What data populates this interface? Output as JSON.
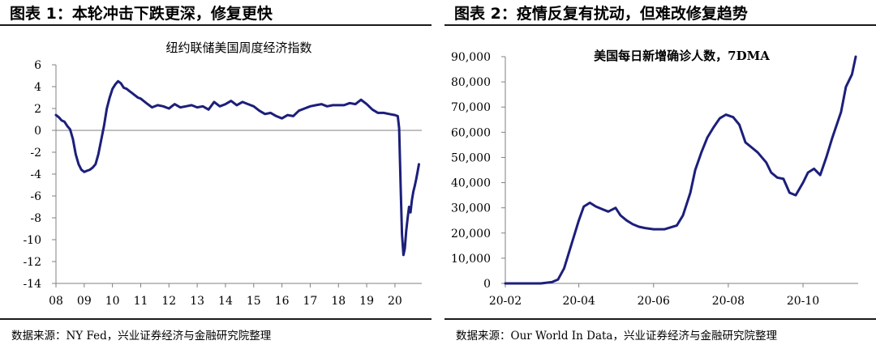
{
  "left_panel": {
    "heading": "图表 1：本轮冲击下跌更深，修复更快",
    "source": "数据来源：NY Fed，兴业证券经济与金融研究院整理"
  },
  "right_panel": {
    "heading": "图表 2：疫情反复有扰动，但难改修复趋势",
    "source": "数据来源：Our World In Data，兴业证券经济与金融研究院整理"
  },
  "chart_data": [
    {
      "type": "line",
      "title": "纽约联储美国周度经济指数",
      "xlabel": "",
      "ylabel": "",
      "ylim": [
        -14,
        6
      ],
      "yticks": [
        6,
        4,
        2,
        0,
        -2,
        -4,
        -6,
        -8,
        -10,
        -12,
        -14
      ],
      "xlim": [
        2008.0,
        2020.95
      ],
      "xticks": [
        2008,
        2009,
        2010,
        2011,
        2012,
        2013,
        2014,
        2015,
        2016,
        2017,
        2018,
        2019,
        2020
      ],
      "xtick_labels": [
        "08",
        "09",
        "10",
        "11",
        "12",
        "13",
        "14",
        "15",
        "16",
        "17",
        "18",
        "19",
        "20"
      ],
      "grid": false,
      "legend": "none",
      "line_color": "#1c1f7a",
      "zero_line": true,
      "series": [
        {
          "x": [
            2008.0,
            2008.1,
            2008.2,
            2008.3,
            2008.4,
            2008.5,
            2008.6,
            2008.7,
            2008.8,
            2008.9,
            2009.0,
            2009.1,
            2009.2,
            2009.3,
            2009.4,
            2009.5,
            2009.6,
            2009.7,
            2009.8,
            2009.9,
            2010.0,
            2010.1,
            2010.2,
            2010.3,
            2010.4,
            2010.5,
            2010.6,
            2010.7,
            2010.8,
            2010.9,
            2011.0,
            2011.2,
            2011.4,
            2011.6,
            2011.8,
            2012.0,
            2012.2,
            2012.4,
            2012.6,
            2012.8,
            2013.0,
            2013.2,
            2013.4,
            2013.6,
            2013.8,
            2014.0,
            2014.2,
            2014.4,
            2014.6,
            2014.8,
            2015.0,
            2015.2,
            2015.4,
            2015.6,
            2015.8,
            2016.0,
            2016.2,
            2016.4,
            2016.6,
            2016.8,
            2017.0,
            2017.2,
            2017.4,
            2017.6,
            2017.8,
            2018.0,
            2018.2,
            2018.4,
            2018.6,
            2018.8,
            2019.0,
            2019.2,
            2019.4,
            2019.6,
            2019.8,
            2020.0,
            2020.1,
            2020.15,
            2020.2,
            2020.25,
            2020.3,
            2020.35,
            2020.4,
            2020.45,
            2020.5,
            2020.55,
            2020.6,
            2020.65,
            2020.7,
            2020.75,
            2020.8,
            2020.85
          ],
          "y": [
            1.4,
            1.2,
            0.9,
            0.8,
            0.4,
            0.1,
            -0.8,
            -2.2,
            -3.1,
            -3.6,
            -3.8,
            -3.7,
            -3.6,
            -3.4,
            -3.1,
            -2.2,
            -0.9,
            0.4,
            2.0,
            3.0,
            3.8,
            4.2,
            4.5,
            4.3,
            3.9,
            3.8,
            3.6,
            3.4,
            3.2,
            3.0,
            2.9,
            2.5,
            2.1,
            2.3,
            2.2,
            2.0,
            2.4,
            2.1,
            2.2,
            2.3,
            2.1,
            2.2,
            1.9,
            2.6,
            2.2,
            2.4,
            2.7,
            2.3,
            2.6,
            2.4,
            2.2,
            1.8,
            1.5,
            1.6,
            1.3,
            1.1,
            1.4,
            1.3,
            1.8,
            2.0,
            2.2,
            2.3,
            2.4,
            2.2,
            2.3,
            2.3,
            2.3,
            2.5,
            2.4,
            2.8,
            2.4,
            1.9,
            1.6,
            1.6,
            1.5,
            1.4,
            1.3,
            0.2,
            -5.0,
            -9.5,
            -11.4,
            -10.8,
            -9.2,
            -8.0,
            -7.0,
            -7.5,
            -6.4,
            -5.6,
            -5.1,
            -4.5,
            -3.8,
            -3.1
          ]
        }
      ]
    },
    {
      "type": "line",
      "title": "美国每日新增确诊人数，7DMA",
      "xlabel": "",
      "ylabel": "",
      "ylim": [
        0,
        90000
      ],
      "yticks": [
        0,
        10000,
        20000,
        30000,
        40000,
        50000,
        60000,
        70000,
        80000,
        90000
      ],
      "ytick_labels": [
        "0",
        "10,000",
        "20,000",
        "30,000",
        "40,000",
        "50,000",
        "60,000",
        "70,000",
        "80,000",
        "90,000"
      ],
      "xlim": [
        "2020-02-01",
        "2020-11-15"
      ],
      "xticks": [
        "2020-02-01",
        "2020-04-01",
        "2020-06-01",
        "2020-08-01",
        "2020-10-01"
      ],
      "xtick_labels": [
        "20-02",
        "20-04",
        "20-06",
        "20-08",
        "20-10"
      ],
      "grid": false,
      "legend": "none",
      "line_color": "#1c1f7a",
      "series": [
        {
          "x": [
            "2020-02-01",
            "2020-03-01",
            "2020-03-10",
            "2020-03-15",
            "2020-03-20",
            "2020-03-25",
            "2020-04-01",
            "2020-04-05",
            "2020-04-10",
            "2020-04-15",
            "2020-04-20",
            "2020-04-25",
            "2020-05-01",
            "2020-05-05",
            "2020-05-10",
            "2020-05-15",
            "2020-05-20",
            "2020-05-25",
            "2020-06-01",
            "2020-06-10",
            "2020-06-20",
            "2020-06-25",
            "2020-07-01",
            "2020-07-05",
            "2020-07-10",
            "2020-07-15",
            "2020-07-20",
            "2020-07-25",
            "2020-07-30",
            "2020-08-05",
            "2020-08-10",
            "2020-08-15",
            "2020-08-20",
            "2020-08-25",
            "2020-09-01",
            "2020-09-05",
            "2020-09-10",
            "2020-09-15",
            "2020-09-20",
            "2020-09-25",
            "2020-10-01",
            "2020-10-05",
            "2020-10-10",
            "2020-10-15",
            "2020-10-20",
            "2020-10-25",
            "2020-11-01",
            "2020-11-05",
            "2020-11-10",
            "2020-11-13"
          ],
          "y": [
            0,
            0,
            500,
            1500,
            6000,
            14000,
            25000,
            30500,
            32000,
            30500,
            29500,
            28500,
            30000,
            27000,
            25000,
            23500,
            22500,
            22000,
            21500,
            21500,
            23000,
            27000,
            36000,
            45000,
            52000,
            58000,
            62000,
            65500,
            67000,
            66000,
            63000,
            56000,
            54000,
            52000,
            48000,
            44000,
            42000,
            41500,
            36000,
            35000,
            40000,
            44000,
            45500,
            43000,
            50000,
            58000,
            68000,
            78000,
            83000,
            90000
          ]
        }
      ]
    }
  ]
}
